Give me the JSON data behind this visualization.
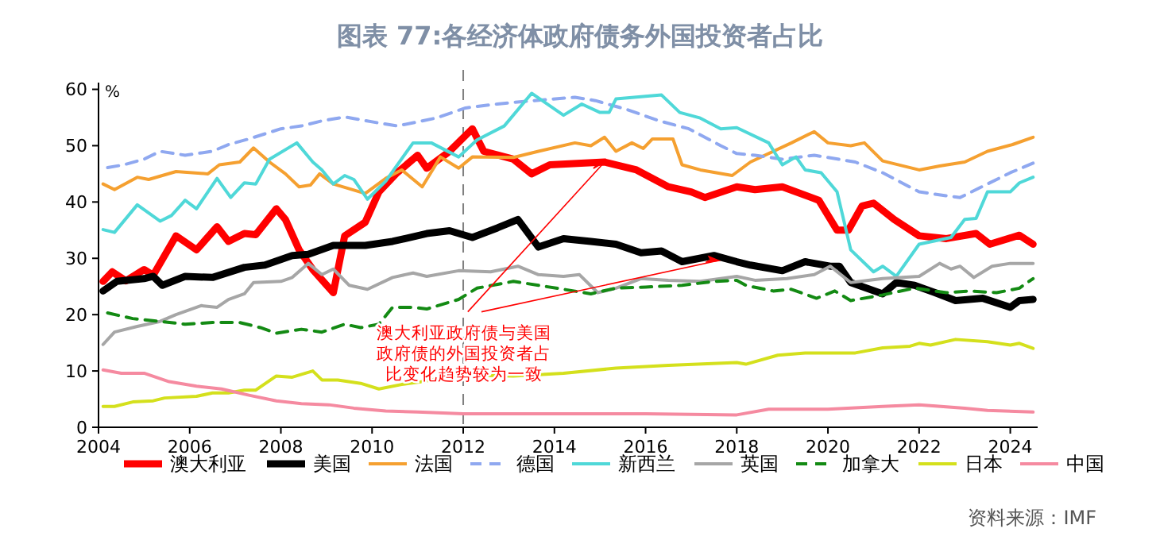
{
  "chart_data": {
    "type": "line",
    "title": "图表 77:各经济体政府债务外国投资者占比",
    "ylabel": "%",
    "xlim": [
      2004,
      2024.6
    ],
    "xticks": [
      2004,
      2006,
      2008,
      2010,
      2012,
      2014,
      2016,
      2018,
      2020,
      2022,
      2024
    ],
    "ylim": [
      0,
      61.2
    ],
    "yticks": [
      0,
      10,
      20,
      30,
      40,
      50,
      60
    ],
    "grid": false,
    "legend": "bottom",
    "marker": "none",
    "ref_lines": [
      {
        "axis": "x",
        "value": 2012,
        "color": "#808080",
        "line_style": "dashed"
      }
    ],
    "annotations": [
      {
        "text": "澳大利亚政府债与美国政府债的外国投资者占比变化趋势较为一致",
        "x": 2015.1,
        "y": 47.1
      },
      "资料来源：IMF"
    ],
    "series": [
      {
        "name": "澳大利亚",
        "color": "#ff0000",
        "x": [
          2004.1,
          2004.3,
          2004.6,
          2005,
          2005.2,
          2005.7,
          2006.15,
          2006.6,
          2006.85,
          2007.2,
          2007.45,
          2007.9,
          2008.1,
          2008.4,
          2008.7,
          2009.15,
          2009.4,
          2009.85,
          2010.15,
          2010.55,
          2011,
          2011.2,
          2011.7,
          2012.2,
          2012.45,
          2013.1,
          2013.5,
          2013.9,
          2015.1,
          2015.8,
          2016.5,
          2017,
          2017.3,
          2018,
          2018.4,
          2019,
          2019.8,
          2020.2,
          2020.45,
          2020.75,
          2021,
          2021.45,
          2022,
          2022.6,
          2023.25,
          2023.55,
          2024.2,
          2024.5
        ],
        "values": [
          25.9,
          27.6,
          26,
          28,
          27,
          34,
          31.5,
          35.6,
          33,
          34.4,
          34.2,
          38.8,
          36.9,
          31.5,
          28,
          23.9,
          34,
          36.4,
          41.8,
          45.2,
          48.3,
          46,
          49,
          53,
          49,
          47.6,
          45,
          46.6,
          47.1,
          45.7,
          42.7,
          41.8,
          40.8,
          42.7,
          42.2,
          42.7,
          40.3,
          35,
          35,
          39.3,
          39.8,
          36.9,
          34,
          33.5,
          34.4,
          32.5,
          34.1,
          32.5
        ]
      },
      {
        "name": "美国",
        "color": "#000000",
        "x": [
          2004.1,
          2004.4,
          2005,
          2005.2,
          2005.4,
          2005.9,
          2006.5,
          2007.2,
          2007.65,
          2008.25,
          2008.6,
          2009.15,
          2009.85,
          2010.45,
          2011.2,
          2011.7,
          2012.2,
          2012.75,
          2013.2,
          2013.65,
          2014.2,
          2014.8,
          2015.35,
          2015.9,
          2016.35,
          2016.8,
          2017.5,
          2018,
          2018.3,
          2019,
          2019.5,
          2020.05,
          2020.25,
          2020.5,
          2021.2,
          2021.5,
          2021.9,
          2022.35,
          2022.8,
          2023.4,
          2024,
          2024.2,
          2024.5
        ],
        "values": [
          24.2,
          25.9,
          26.4,
          26.8,
          25.2,
          26.8,
          26.6,
          28.4,
          28.8,
          30.5,
          30.7,
          32.3,
          32.3,
          33,
          34.4,
          34.9,
          33.7,
          35.4,
          36.9,
          32,
          33.5,
          33,
          32.5,
          31,
          31.3,
          29.4,
          30.5,
          29.4,
          28.8,
          27.8,
          29.4,
          28.6,
          28.6,
          25.7,
          23.7,
          25.7,
          25.2,
          23.9,
          22.5,
          22.9,
          21.3,
          22.5,
          22.7
        ]
      },
      {
        "name": "法国",
        "color": "#f5a030",
        "x": [
          2004.1,
          2004.35,
          2004.85,
          2005.1,
          2005.7,
          2006.4,
          2006.65,
          2007.1,
          2007.4,
          2007.75,
          2008.1,
          2008.4,
          2008.65,
          2008.85,
          2009.15,
          2009.85,
          2010.3,
          2010.65,
          2011.1,
          2011.5,
          2011.9,
          2012.2,
          2013.1,
          2013.65,
          2014.45,
          2014.8,
          2015.1,
          2015.35,
          2015.7,
          2015.95,
          2016.15,
          2016.6,
          2016.8,
          2017.2,
          2017.9,
          2018.3,
          2019.2,
          2019.7,
          2020,
          2020.5,
          2020.8,
          2021.2,
          2022,
          2022.45,
          2023,
          2023.5,
          2024.05,
          2024.5
        ],
        "values": [
          43.2,
          42.2,
          44.4,
          44,
          45.4,
          45,
          46.6,
          47.1,
          49.6,
          47.1,
          45,
          42.7,
          43,
          45,
          43.2,
          41.5,
          44.2,
          45.7,
          42.7,
          48,
          46,
          48,
          47.9,
          49,
          50.5,
          50,
          51.5,
          49,
          50.5,
          49.5,
          51.2,
          51.2,
          46.6,
          45.7,
          44.7,
          47.1,
          50.5,
          52.5,
          50.5,
          50,
          50.5,
          47.3,
          45.7,
          46.4,
          47.1,
          49,
          50.2,
          51.5
        ]
      },
      {
        "name": "德国",
        "color": "#8fa8f0",
        "line_style": "dashed",
        "x": [
          2004.2,
          2004.55,
          2005,
          2005.35,
          2005.9,
          2006.5,
          2006.85,
          2007.3,
          2008,
          2008.45,
          2008.9,
          2009.4,
          2010.1,
          2010.55,
          2011.4,
          2012.05,
          2012.75,
          2013.55,
          2014.45,
          2014.9,
          2015.6,
          2016.3,
          2016.95,
          2017.65,
          2018,
          2018.4,
          2019,
          2019.7,
          2020.6,
          2021.2,
          2022,
          2022.6,
          2022.9,
          2023.5,
          2024,
          2024.5
        ],
        "values": [
          46.1,
          46.6,
          47.6,
          49,
          48.3,
          49,
          50.2,
          51.2,
          53,
          53.5,
          54.4,
          55.1,
          54.1,
          53.5,
          54.9,
          56.7,
          57.4,
          58,
          58.6,
          58,
          56.4,
          54.4,
          53,
          50,
          48.6,
          48.3,
          47.6,
          48.3,
          47.1,
          45.2,
          41.8,
          41.1,
          40.8,
          43.2,
          45.2,
          46.9
        ]
      },
      {
        "name": "新西兰",
        "color": "#4fd8d8",
        "x": [
          2004.1,
          2004.35,
          2004.85,
          2005.35,
          2005.6,
          2005.9,
          2006.15,
          2006.6,
          2006.9,
          2007.2,
          2007.45,
          2007.75,
          2008.35,
          2008.7,
          2008.9,
          2009.15,
          2009.4,
          2009.6,
          2009.9,
          2010.3,
          2010.9,
          2011.3,
          2011.9,
          2012.3,
          2012.9,
          2013.5,
          2014.2,
          2014.6,
          2015,
          2015.2,
          2015.35,
          2016.35,
          2016.75,
          2017.2,
          2017.65,
          2018,
          2018.7,
          2019,
          2019.3,
          2019.5,
          2019.85,
          2020.2,
          2020.5,
          2021,
          2021.2,
          2021.5,
          2022,
          2022.7,
          2023,
          2023.25,
          2023.5,
          2024,
          2024.2,
          2024.5
        ],
        "values": [
          35.1,
          34.6,
          39.5,
          36.6,
          37.6,
          40.3,
          38.8,
          44.2,
          40.8,
          43.4,
          43.2,
          47.6,
          50.5,
          47.1,
          45.7,
          43.2,
          44.7,
          44,
          40.5,
          43.7,
          50.5,
          50.5,
          48,
          51,
          53.5,
          59.3,
          55.4,
          57.4,
          55.9,
          55.9,
          58.3,
          59,
          55.9,
          54.9,
          53,
          53.2,
          50.5,
          46.6,
          48,
          45.7,
          45.2,
          41.8,
          31.5,
          27.6,
          28.6,
          26.8,
          32.5,
          33.7,
          36.9,
          37.1,
          41.8,
          41.8,
          43.4,
          44.4
        ]
      },
      {
        "name": "英国",
        "color": "#a6a6a6",
        "x": [
          2004.1,
          2004.35,
          2004.85,
          2005.35,
          2005.7,
          2006.25,
          2006.6,
          2006.85,
          2007.2,
          2007.4,
          2008,
          2008.25,
          2008.6,
          2008.9,
          2009.15,
          2009.5,
          2009.9,
          2010.45,
          2010.9,
          2011.2,
          2011.9,
          2012.6,
          2013.2,
          2013.65,
          2014.2,
          2014.55,
          2014.95,
          2015.35,
          2015.9,
          2016.5,
          2017.2,
          2018,
          2018.4,
          2019.1,
          2019.7,
          2020.05,
          2020.5,
          2021.2,
          2022,
          2022.45,
          2022.7,
          2022.9,
          2023.2,
          2023.6,
          2024,
          2024.5
        ],
        "values": [
          14.7,
          16.9,
          17.9,
          18.8,
          20,
          21.6,
          21.3,
          22.7,
          23.7,
          25.7,
          25.9,
          26.6,
          29.1,
          27.1,
          28.1,
          25.2,
          24.5,
          26.6,
          27.4,
          26.8,
          27.8,
          27.6,
          28.6,
          27.1,
          26.8,
          27.1,
          23.9,
          24.7,
          26.4,
          26.1,
          25.9,
          26.8,
          26.1,
          26.4,
          27.1,
          28.6,
          25.7,
          26.4,
          26.8,
          29.1,
          28.1,
          28.6,
          26.6,
          28.6,
          29.1,
          29.1
        ]
      },
      {
        "name": "加拿大",
        "color": "#138a13",
        "line_style": "dashed",
        "x": [
          2004.2,
          2004.75,
          2005.35,
          2005.9,
          2006.5,
          2007.1,
          2007.55,
          2007.9,
          2008.45,
          2008.9,
          2009.4,
          2009.75,
          2010.15,
          2010.45,
          2010.9,
          2011.2,
          2011.9,
          2012.3,
          2013.1,
          2013.65,
          2014.2,
          2014.8,
          2015.35,
          2016,
          2016.8,
          2017.5,
          2018,
          2018.2,
          2018.8,
          2019.2,
          2019.75,
          2020.15,
          2020.5,
          2021.2,
          2021.9,
          2022.6,
          2023.1,
          2023.7,
          2024.2,
          2024.5
        ],
        "values": [
          20.3,
          19.3,
          18.8,
          18.3,
          18.6,
          18.6,
          17.7,
          16.7,
          17.4,
          16.9,
          18.3,
          17.7,
          18.3,
          21.3,
          21.3,
          21,
          22.7,
          24.7,
          25.9,
          25.2,
          24.5,
          23.7,
          24.7,
          24.9,
          25.2,
          25.9,
          26.1,
          25.2,
          24.2,
          24.5,
          22.9,
          24.2,
          22.5,
          23.5,
          24.7,
          23.9,
          24.2,
          23.9,
          24.7,
          26.4
        ]
      },
      {
        "name": "日本",
        "color": "#d4e01c",
        "x": [
          2004.1,
          2004.35,
          2004.75,
          2005.2,
          2005.45,
          2006.15,
          2006.5,
          2006.85,
          2007.2,
          2007.45,
          2007.9,
          2008.25,
          2008.7,
          2008.9,
          2009.25,
          2009.75,
          2010.15,
          2010.65,
          2011.1,
          2011.9,
          2013.1,
          2014.2,
          2015.35,
          2016.5,
          2018,
          2018.2,
          2018.9,
          2019.5,
          2020.6,
          2021.2,
          2021.8,
          2022,
          2022.25,
          2022.8,
          2023.5,
          2024,
          2024.2,
          2024.5
        ],
        "values": [
          3.7,
          3.7,
          4.5,
          4.7,
          5.2,
          5.5,
          6.1,
          6.1,
          6.6,
          6.6,
          9.1,
          8.9,
          10,
          8.4,
          8.4,
          7.8,
          6.8,
          7.6,
          8.1,
          9.3,
          9.1,
          9.6,
          10.5,
          11,
          11.5,
          11.2,
          12.8,
          13.2,
          13.2,
          14.1,
          14.4,
          14.9,
          14.6,
          15.6,
          15.2,
          14.6,
          14.9,
          14
        ]
      },
      {
        "name": "中国",
        "color": "#f58aa0",
        "x": [
          2004.1,
          2004.5,
          2005,
          2005.55,
          2006.15,
          2006.7,
          2007.3,
          2007.9,
          2008.45,
          2009.05,
          2009.6,
          2010.3,
          2011,
          2012,
          2014,
          2016,
          2018,
          2018.7,
          2020,
          2021.2,
          2022,
          2023,
          2023.5,
          2024.5
        ],
        "values": [
          10.2,
          9.6,
          9.6,
          8.1,
          7.3,
          6.8,
          5.7,
          4.7,
          4.2,
          4,
          3.4,
          2.9,
          2.7,
          2.4,
          2.4,
          2.4,
          2.2,
          3.2,
          3.2,
          3.7,
          4,
          3.4,
          3,
          2.7
        ]
      }
    ]
  }
}
